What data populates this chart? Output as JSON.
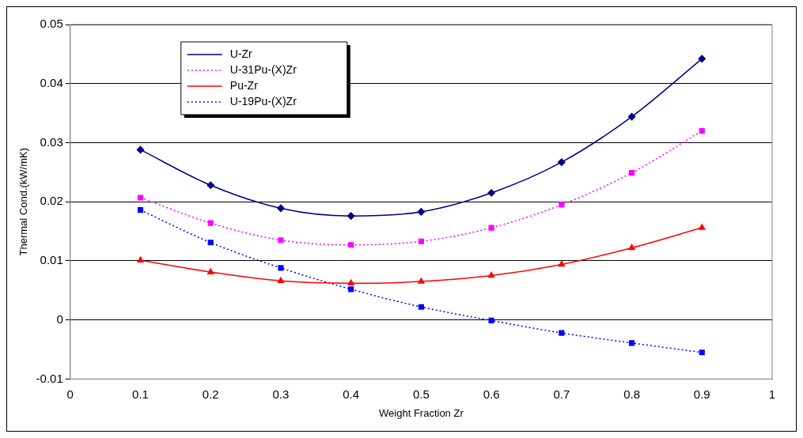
{
  "chart_data": {
    "type": "line",
    "xlabel": "Weight Fraction Zr",
    "ylabel": "Thermal Cond.(kW/mK)",
    "x": [
      0.1,
      0.2,
      0.3,
      0.4,
      0.5,
      0.6,
      0.7,
      0.8,
      0.9
    ],
    "xlim": [
      0,
      1
    ],
    "xticks": [
      0,
      0.1,
      0.2,
      0.3,
      0.4,
      0.5,
      0.6,
      0.7,
      0.8,
      0.9,
      1
    ],
    "ylim": [
      -0.01,
      0.05
    ],
    "yticks": [
      -0.01,
      0,
      0.01,
      0.02,
      0.03,
      0.04,
      0.05
    ],
    "grid": "y",
    "legend": "top left",
    "series": [
      {
        "name": "U-Zr",
        "color": "#000080",
        "marker": "diamond",
        "line_style": "solid",
        "values": [
          0.0288,
          0.0228,
          0.0189,
          0.0176,
          0.0183,
          0.0215,
          0.0267,
          0.0344,
          0.0442
        ]
      },
      {
        "name": "U-31Pu-(X)Zr",
        "color": "#ff00ff",
        "marker": "square",
        "line_style": "dotted",
        "values": [
          0.0207,
          0.0164,
          0.0135,
          0.0127,
          0.0133,
          0.0156,
          0.0195,
          0.0249,
          0.032
        ]
      },
      {
        "name": "Pu-Zr",
        "color": "#ff0000",
        "marker": "triangle",
        "line_style": "solid",
        "values": [
          0.0101,
          0.0081,
          0.0066,
          0.0062,
          0.0065,
          0.0075,
          0.0094,
          0.0122,
          0.0156
        ]
      },
      {
        "name": "U-19Pu-(X)Zr",
        "color": "#0000ff",
        "marker": "square",
        "line_style": "dotted",
        "values": [
          0.0186,
          0.0131,
          0.0088,
          0.0052,
          0.0022,
          -0.0001,
          -0.0022,
          -0.0039,
          -0.0055
        ]
      }
    ]
  }
}
